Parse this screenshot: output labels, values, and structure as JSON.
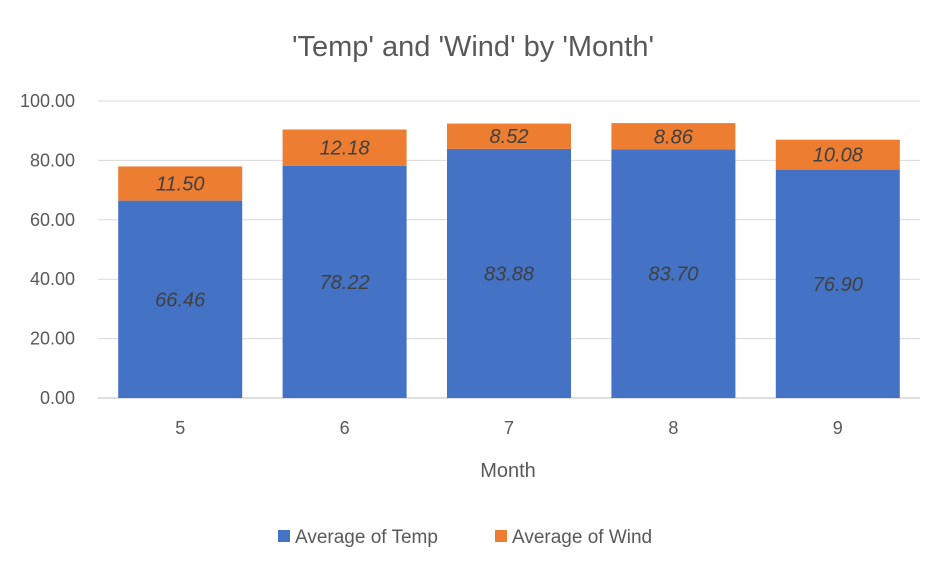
{
  "chart_data": {
    "type": "bar",
    "stacked": true,
    "title": "'Temp' and 'Wind' by 'Month'",
    "xlabel": "Month",
    "ylabel": "",
    "categories": [
      "5",
      "6",
      "7",
      "8",
      "9"
    ],
    "series": [
      {
        "name": "Average of Temp",
        "color": "#4472c4",
        "values": [
          66.46,
          78.22,
          83.88,
          83.7,
          76.9
        ],
        "labels": [
          "66.46",
          "78.22",
          "83.88",
          "83.70",
          "76.90"
        ]
      },
      {
        "name": "Average of Wind",
        "color": "#ed7d31",
        "values": [
          11.5,
          12.18,
          8.52,
          8.86,
          10.08
        ],
        "labels": [
          "11.50",
          "12.18",
          "8.52",
          "8.86",
          "10.08"
        ]
      }
    ],
    "ylim": [
      0,
      100
    ],
    "yticks": [
      "0.00",
      "20.00",
      "40.00",
      "60.00",
      "80.00",
      "100.00"
    ],
    "grid": true,
    "legend_position": "bottom"
  }
}
